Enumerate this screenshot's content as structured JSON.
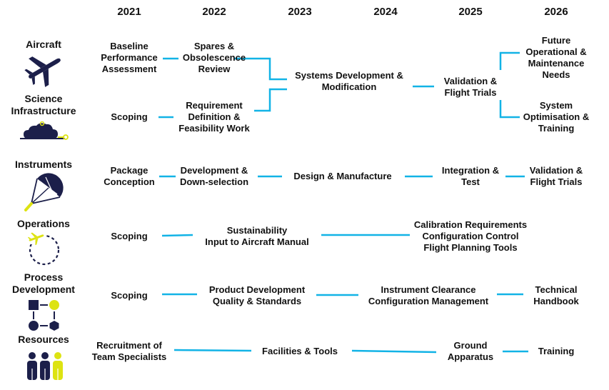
{
  "years": [
    "2021",
    "2022",
    "2023",
    "2024",
    "2025",
    "2026"
  ],
  "categories": {
    "aircraft": "Aircraft",
    "science": [
      "Science",
      "Infrastructure"
    ],
    "instruments": "Instruments",
    "operations": "Operations",
    "process": [
      "Process",
      "Development"
    ],
    "resources": "Resources"
  },
  "aircraft": {
    "baseline": [
      "Baseline",
      "Performance",
      "Assessment"
    ],
    "spares": [
      "Spares &",
      "Obsolescence",
      "Review"
    ],
    "systems_dev": [
      "Systems Development &",
      "Modification"
    ],
    "validation": [
      "Validation &",
      "Flight Trials"
    ],
    "future": [
      "Future",
      "Operational &",
      "Maintenance",
      "Needs"
    ]
  },
  "science": {
    "scoping": "Scoping",
    "requirement": [
      "Requirement",
      "Definition &",
      "Feasibility Work"
    ],
    "system_opt": [
      "System",
      "Optimisation &",
      "Training"
    ]
  },
  "instruments": {
    "package": [
      "Package",
      "Conception"
    ],
    "development": [
      "Development &",
      "Down-selection"
    ],
    "design": "Design & Manufacture",
    "integration": [
      "Integration &",
      "Test"
    ],
    "validation": [
      "Validation &",
      "Flight Trials"
    ]
  },
  "operations": {
    "scoping": "Scoping",
    "sustainability": [
      "Sustainability",
      "Input to Aircraft Manual"
    ],
    "calibration": [
      "Calibration Requirements",
      "Configuration Control",
      "Flight Planning Tools"
    ]
  },
  "process": {
    "scoping": "Scoping",
    "product": [
      "Product Development",
      "Quality & Standards"
    ],
    "clearance": [
      "Instrument Clearance",
      "Configuration Management"
    ],
    "handbook": [
      "Technical",
      "Handbook"
    ]
  },
  "resources": {
    "recruitment": [
      "Recruitment of",
      "Team Specialists"
    ],
    "facilities": "Facilities & Tools",
    "ground": [
      "Ground",
      "Apparatus"
    ],
    "training": "Training"
  },
  "colors": {
    "connector": "#12b3e6",
    "icon_dark": "#1c1f4a",
    "icon_accent": "#dde312"
  },
  "icons": [
    "airplane-icon",
    "cloud-network-icon",
    "parachute-icon",
    "airplane-circle-icon",
    "process-flow-icon",
    "team-people-icon"
  ]
}
